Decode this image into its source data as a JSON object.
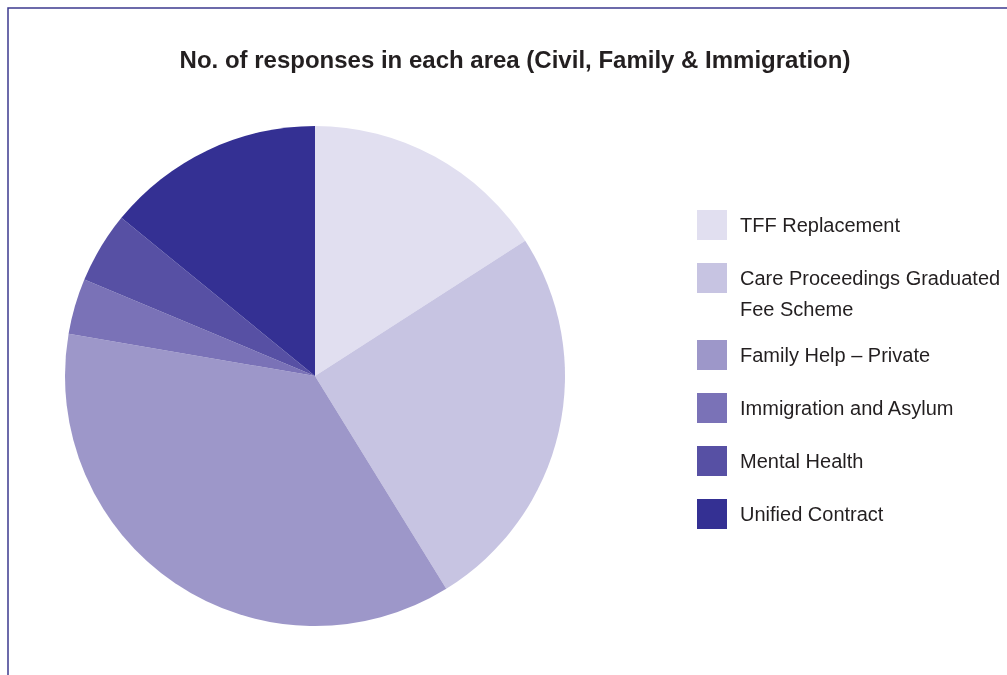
{
  "chart_data": {
    "type": "pie",
    "title": "No. of responses in each area (Civil, Family & Immigration)",
    "categories": [
      "TFF Replacement",
      "Care Proceedings Graduated Fee Scheme",
      "Family Help – Private",
      "Immigration and Asylum",
      "Mental Health",
      "Unified Contract"
    ],
    "values": [
      15.9,
      25.3,
      36.5,
      3.6,
      4.6,
      14.1
    ],
    "colors": [
      "#e1dff0",
      "#c7c4e2",
      "#9d97c9",
      "#7a72b7",
      "#5750a4",
      "#343093"
    ],
    "legend": "right"
  }
}
